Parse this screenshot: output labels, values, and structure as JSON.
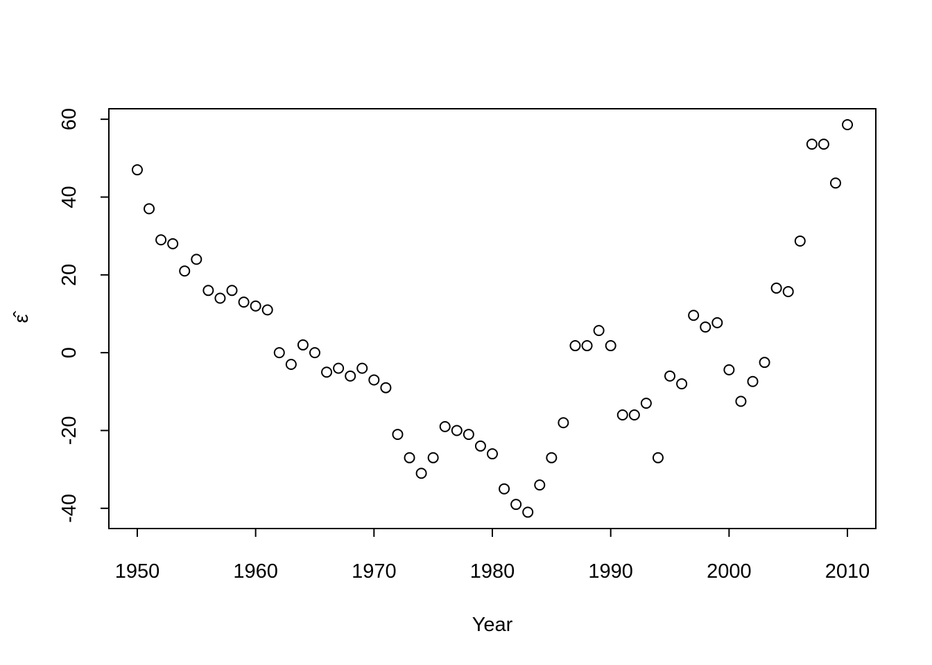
{
  "chart_data": {
    "type": "scatter",
    "x_label": "Year",
    "y_label": "ε̂",
    "x": [
      1950,
      1951,
      1952,
      1953,
      1954,
      1955,
      1956,
      1957,
      1958,
      1959,
      1960,
      1961,
      1962,
      1963,
      1964,
      1965,
      1966,
      1967,
      1968,
      1969,
      1970,
      1971,
      1972,
      1973,
      1974,
      1975,
      1976,
      1977,
      1978,
      1979,
      1980,
      1981,
      1982,
      1983,
      1984,
      1985,
      1986,
      1987,
      1988,
      1989,
      1990,
      1991,
      1992,
      1993,
      1994,
      1995,
      1996,
      1997,
      1998,
      1999,
      2000,
      2001,
      2002,
      2003,
      2004,
      2005,
      2006,
      2007,
      2008,
      2009,
      2010
    ],
    "values": [
      47,
      37,
      29,
      28,
      21,
      24,
      16,
      14,
      16,
      13,
      12,
      11,
      0,
      -3,
      2,
      0,
      -5,
      -4,
      -6,
      -4,
      -7,
      -9,
      -21,
      -27,
      -31,
      -27,
      -19,
      -20,
      -21,
      -24,
      -26,
      -35,
      -39,
      -41,
      -34,
      -27,
      -18,
      1.8,
      1.8,
      5.7,
      1.8,
      -16,
      -16,
      -13,
      -27,
      -6,
      -8,
      9.6,
      6.6,
      7.7,
      -4.4,
      -12.5,
      -7.4,
      -2.5,
      16.6,
      15.7,
      28.7,
      53.6,
      53.6,
      43.6,
      58.6
    ],
    "color": "#000000",
    "xlim": [
      1947.6,
      2012.4
    ],
    "ylim": [
      -45.2,
      62.7
    ],
    "xticks": [
      1950,
      1960,
      1970,
      1980,
      1990,
      2000,
      2010
    ],
    "yticks": [
      -40,
      -20,
      0,
      20,
      40,
      60
    ]
  }
}
